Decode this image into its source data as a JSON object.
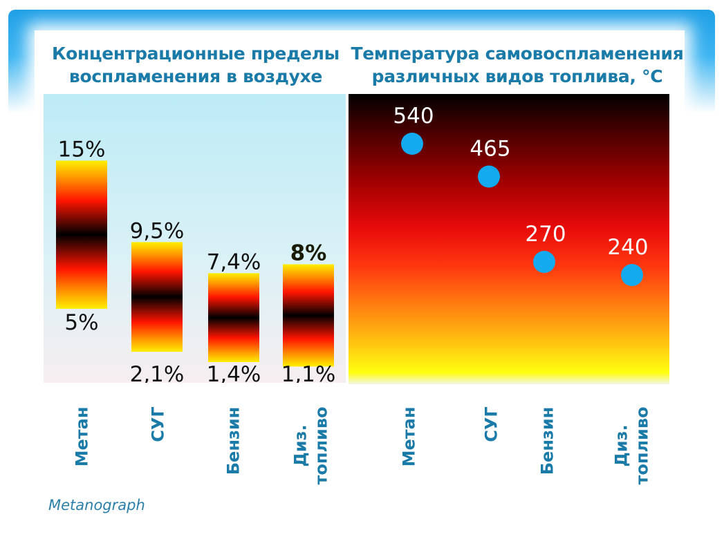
{
  "chart_data": [
    {
      "type": "bar",
      "title": "Концентрационные пределы воспламенения в воздухе",
      "title_lines": [
        "Концентрационные пределы",
        "воспламенения в воздухе"
      ],
      "categories": [
        "Метан",
        "СУГ",
        "Бензин",
        "Диз. топливо"
      ],
      "category_lines": [
        [
          "Метан"
        ],
        [
          "СУГ"
        ],
        [
          "Бензин"
        ],
        [
          "Диз.",
          "топливо"
        ]
      ],
      "series": [
        {
          "name": "",
          "lower": [
            5,
            2.1,
            1.4,
            1.1
          ],
          "upper": [
            15,
            9.5,
            7.4,
            8
          ]
        }
      ],
      "lower_labels": [
        "5%",
        "2,1%",
        "1,4%",
        "1,1%"
      ],
      "upper_labels": [
        "15%",
        "9,5%",
        "7,4%",
        "8%"
      ],
      "ylim": [
        0,
        19.5
      ],
      "grid": false
    },
    {
      "type": "scatter",
      "title": "Температура самовоспламенения различных видов топлива, °С",
      "title_lines": [
        "Температура самовоспламенения",
        "различных видов топлива, °С"
      ],
      "categories": [
        "Метан",
        "СУГ",
        "Бензин",
        "Диз. топливо"
      ],
      "category_lines": [
        [
          "Метан"
        ],
        [
          "СУГ"
        ],
        [
          "Бензин"
        ],
        [
          "Диз.",
          "топливо"
        ]
      ],
      "values": [
        540,
        465,
        270,
        240
      ],
      "value_labels": [
        "540",
        "465",
        "270",
        "240"
      ],
      "point_color": "#13aaf0",
      "grid": false
    }
  ],
  "footer": "Metanograph"
}
